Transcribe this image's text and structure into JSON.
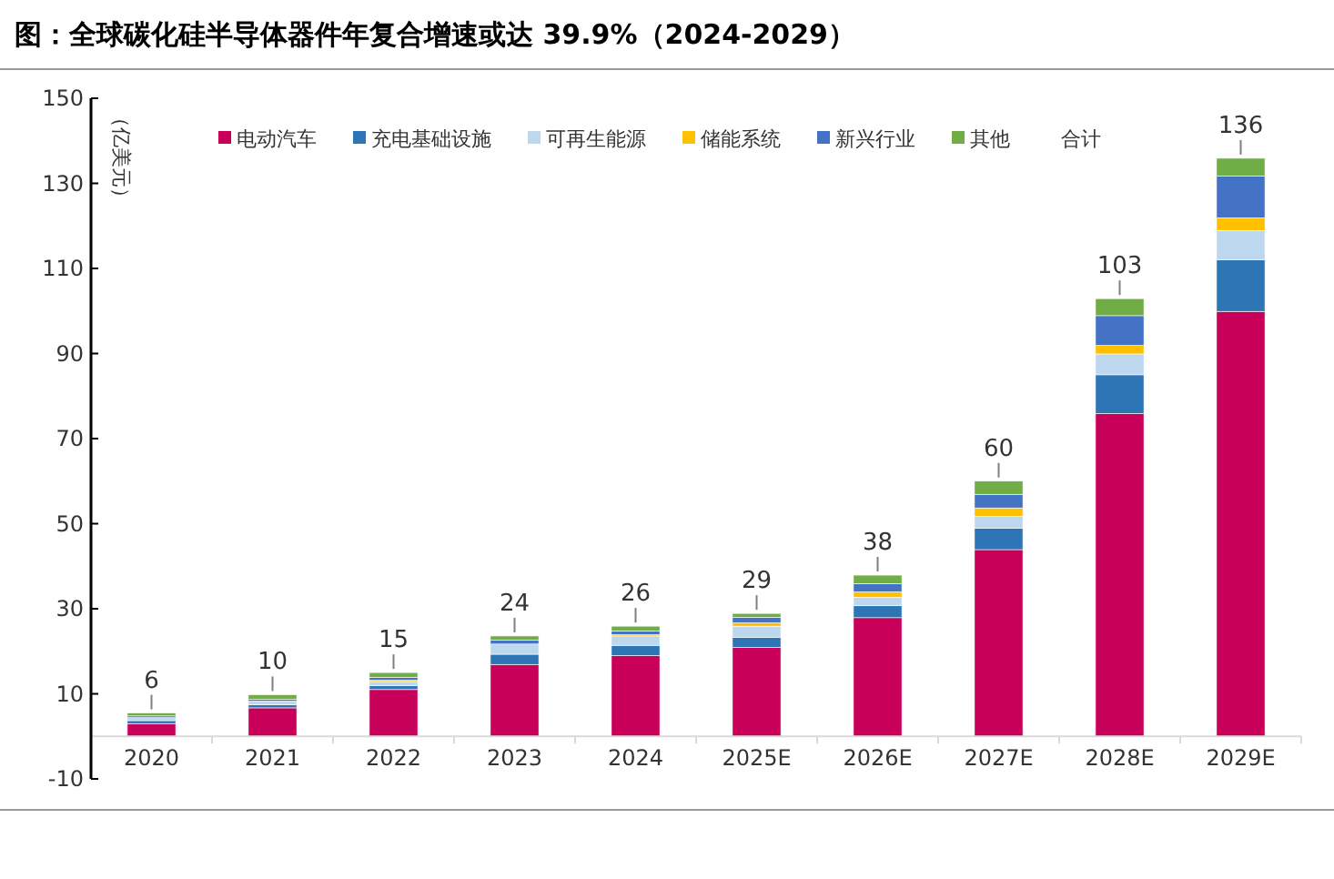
{
  "chart_data": {
    "type": "bar",
    "stacked": true,
    "title": "图：全球碳化硅半导体器件年复合增速或达 39.9%（2024-2029）",
    "ylabel": "（亿美元）",
    "categories": [
      "2020",
      "2021",
      "2022",
      "2023",
      "2024",
      "2025E",
      "2026E",
      "2027E",
      "2028E",
      "2029E"
    ],
    "series": [
      {
        "name": "电动汽车",
        "color": "#c8005a",
        "values": [
          3.0,
          6.7,
          11.0,
          16.9,
          19.0,
          20.9,
          27.9,
          43.9,
          75.9,
          99.9
        ]
      },
      {
        "name": "充电基础设施",
        "color": "#2e75b6",
        "values": [
          0.7,
          0.7,
          0.9,
          2.4,
          2.4,
          2.4,
          2.8,
          5.0,
          9.1,
          12.1
        ]
      },
      {
        "name": "可再生能源",
        "color": "#bdd7ee",
        "values": [
          0.7,
          0.9,
          1.0,
          2.4,
          2.2,
          2.6,
          2.0,
          2.8,
          4.9,
          6.9
        ]
      },
      {
        "name": "储能系统",
        "color": "#ffc000",
        "values": [
          null,
          null,
          0.3,
          null,
          0.3,
          0.8,
          1.3,
          2.0,
          2.0,
          3.0
        ]
      },
      {
        "name": "新兴行业",
        "color": "#4472c4",
        "values": [
          0.4,
          0.4,
          0.7,
          0.9,
          0.9,
          1.3,
          1.9,
          3.2,
          7.0,
          9.8
        ]
      },
      {
        "name": "其他",
        "color": "#70ad47",
        "values": [
          0.7,
          1.1,
          1.1,
          1.0,
          1.1,
          0.9,
          2.0,
          3.1,
          4.0,
          4.2
        ]
      }
    ],
    "totals": [
      "6",
      "10",
      "15",
      "24",
      "26",
      "29",
      "38",
      "60",
      "103",
      "136"
    ],
    "annotations": [
      "合计"
    ],
    "ylim": [
      -10,
      150
    ],
    "yticks": [
      -10,
      10,
      30,
      50,
      70,
      90,
      110,
      130,
      150
    ],
    "grid": false,
    "legend": "top"
  }
}
